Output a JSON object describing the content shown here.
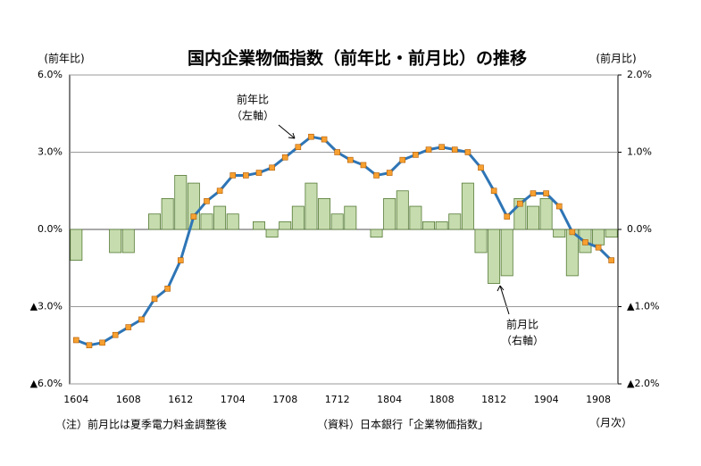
{
  "chart_data": {
    "type": "bar_line",
    "title": "国内企業物価指数（前年比・前月比）の推移",
    "y_label": "(前年比)",
    "y2_label": "(前月比)",
    "x_unit": "（月次）",
    "note": "（注）前月比は夏季電力料金調整後",
    "source": "（資料）日本銀行「企業物価指数」",
    "annotations": [
      {
        "lines": [
          "前年比",
          "（左軸）"
        ]
      },
      {
        "lines": [
          "前月比",
          "（右軸）"
        ]
      }
    ],
    "categories": [
      "1604",
      null,
      null,
      null,
      "1608",
      null,
      null,
      null,
      "1612",
      null,
      null,
      null,
      "1704",
      null,
      null,
      null,
      "1708",
      null,
      null,
      null,
      "1712",
      null,
      null,
      null,
      "1804",
      null,
      null,
      null,
      "1808",
      null,
      null,
      null,
      "1812",
      null,
      null,
      null,
      "1904",
      null,
      null,
      null,
      "1908",
      null
    ],
    "series": [
      {
        "name": "前月比",
        "type": "bar",
        "axis": "y2",
        "color": "#c6dcae",
        "edge": "#557a35",
        "values": [
          -0.4,
          0,
          0,
          -0.3,
          -0.3,
          0,
          0.2,
          0.4,
          0.7,
          0.6,
          0.2,
          0.3,
          0.2,
          0,
          0.1,
          -0.1,
          0.1,
          0.3,
          0.6,
          0.4,
          0.2,
          0.3,
          0,
          -0.1,
          0.4,
          0.5,
          0.3,
          0.1,
          0.1,
          0.2,
          0.6,
          -0.3,
          -0.7,
          -0.6,
          0.4,
          0.3,
          0.4,
          -0.1,
          -0.6,
          -0.3,
          -0.2,
          -0.1
        ]
      },
      {
        "name": "前年比",
        "type": "line",
        "axis": "y",
        "color": "#2e75b6",
        "marker_color": "#f7a030",
        "values": [
          -4.3,
          -4.5,
          -4.4,
          -4.1,
          -3.8,
          -3.5,
          -2.7,
          -2.3,
          -1.2,
          0.5,
          1.1,
          1.5,
          2.1,
          2.1,
          2.2,
          2.4,
          2.8,
          3.2,
          3.6,
          3.5,
          3.0,
          2.7,
          2.5,
          2.1,
          2.2,
          2.7,
          2.9,
          3.1,
          3.2,
          3.1,
          3.0,
          2.4,
          1.5,
          0.5,
          1.0,
          1.4,
          1.4,
          0.9,
          -0.1,
          -0.5,
          -0.7,
          -1.2
        ]
      }
    ],
    "ylim": [
      -6,
      6
    ],
    "yticks": [
      {
        "value": 6,
        "label": "6.0%"
      },
      {
        "value": 3,
        "label": "3.0%"
      },
      {
        "value": 0,
        "label": "0.0%"
      },
      {
        "value": -3,
        "label": "▲3.0%"
      },
      {
        "value": -6,
        "label": "▲6.0%"
      }
    ],
    "y2lim": [
      -2,
      2
    ],
    "y2ticks": [
      {
        "value": 2,
        "label": "2.0%"
      },
      {
        "value": 1,
        "label": "1.0%"
      },
      {
        "value": 0,
        "label": "0.0%"
      },
      {
        "value": -1,
        "label": "▲1.0%"
      },
      {
        "value": -2,
        "label": "▲2.0%"
      }
    ],
    "negative_label_color": "#e00000",
    "grid": true
  }
}
